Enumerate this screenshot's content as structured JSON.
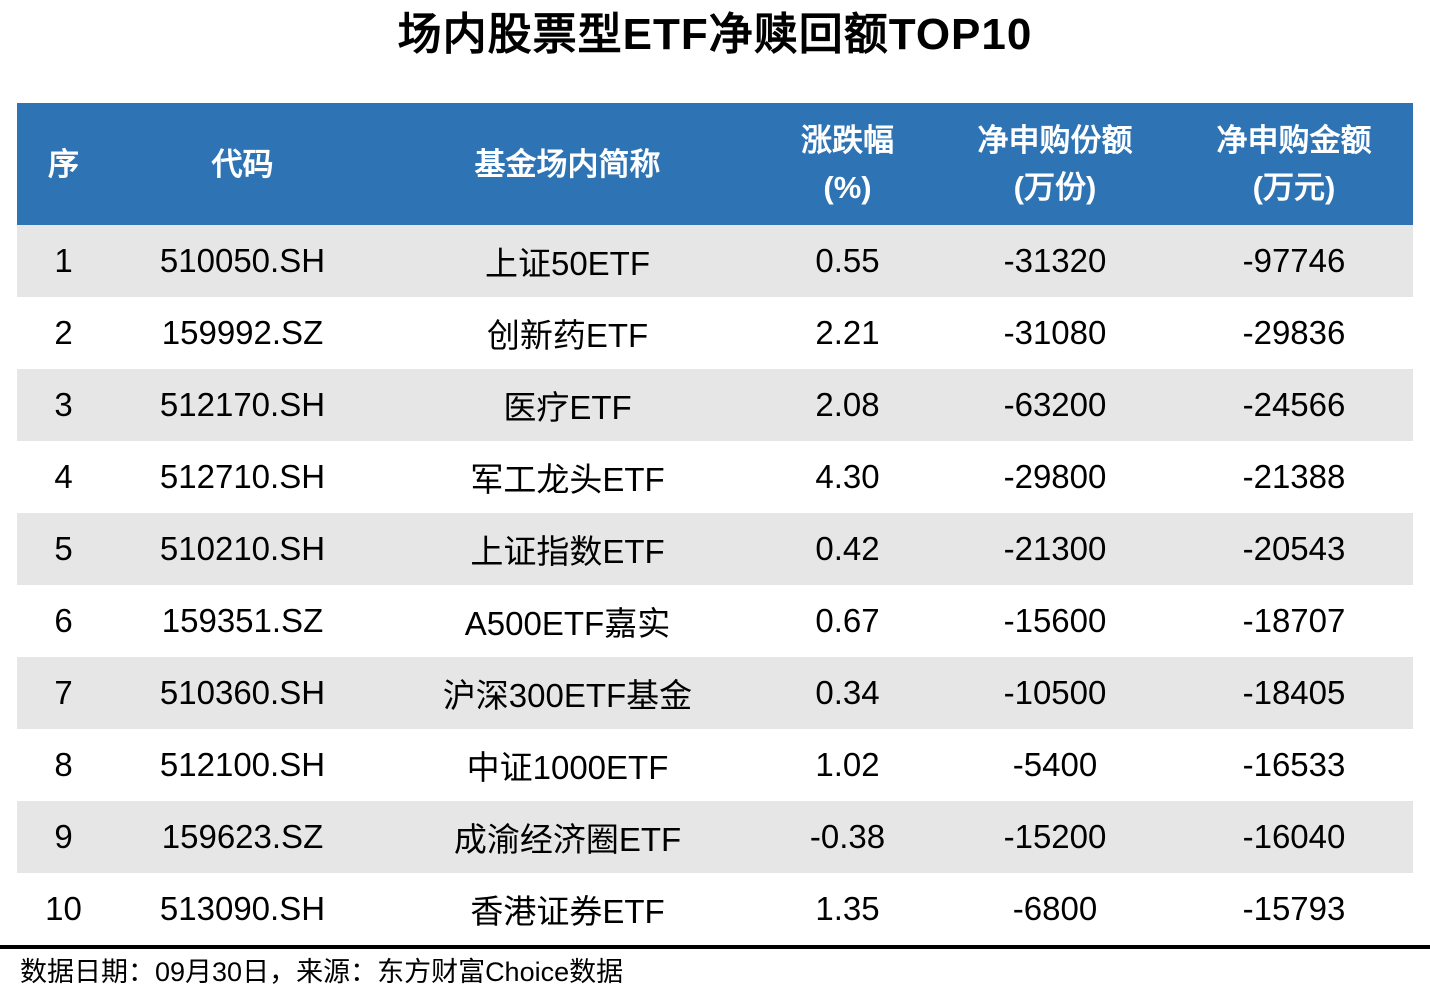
{
  "page": {
    "title": "场内股票型ETF净赎回额TOP10",
    "footer_note": "数据日期：09月30日，来源：东方财富Choice数据"
  },
  "colors": {
    "header_bg": "#2E74B5",
    "header_text": "#FFFFFF",
    "stripe_row_bg": "#E6E6E6",
    "plain_row_bg": "#FFFFFF",
    "body_text": "#000000",
    "divider_rule": "#000000"
  },
  "table": {
    "headers": [
      {
        "line1": "序"
      },
      {
        "line1": "代码"
      },
      {
        "line1": "基金场内简称"
      },
      {
        "line1": "涨跌幅",
        "line2": "(%)"
      },
      {
        "line1": "净申购份额",
        "line2": "(万份)"
      },
      {
        "line1": "净申购金额",
        "line2": "(万元)"
      }
    ],
    "rows": [
      [
        "1",
        "510050.SH",
        "上证50ETF",
        "0.55",
        "-31320",
        "-97746"
      ],
      [
        "2",
        "159992.SZ",
        "创新药ETF",
        "2.21",
        "-31080",
        "-29836"
      ],
      [
        "3",
        "512170.SH",
        "医疗ETF",
        "2.08",
        "-63200",
        "-24566"
      ],
      [
        "4",
        "512710.SH",
        "军工龙头ETF",
        "4.30",
        "-29800",
        "-21388"
      ],
      [
        "5",
        "510210.SH",
        "上证指数ETF",
        "0.42",
        "-21300",
        "-20543"
      ],
      [
        "6",
        "159351.SZ",
        "A500ETF嘉实",
        "0.67",
        "-15600",
        "-18707"
      ],
      [
        "7",
        "510360.SH",
        "沪深300ETF基金",
        "0.34",
        "-10500",
        "-18405"
      ],
      [
        "8",
        "512100.SH",
        "中证1000ETF",
        "1.02",
        "-5400",
        "-16533"
      ],
      [
        "9",
        "159623.SZ",
        "成渝经济圈ETF",
        "-0.38",
        "-15200",
        "-16040"
      ],
      [
        "10",
        "513090.SH",
        "香港证券ETF",
        "1.35",
        "-6800",
        "-15793"
      ]
    ]
  },
  "chart_data": {
    "type": "table",
    "title": "场内股票型ETF净赎回额TOP10",
    "columns": [
      "序",
      "代码",
      "基金场内简称",
      "涨跌幅(%)",
      "净申购份额(万份)",
      "净申购金额(万元)"
    ],
    "rows": [
      [
        1,
        "510050.SH",
        "上证50ETF",
        0.55,
        -31320,
        -97746
      ],
      [
        2,
        "159992.SZ",
        "创新药ETF",
        2.21,
        -31080,
        -29836
      ],
      [
        3,
        "512170.SH",
        "医疗ETF",
        2.08,
        -63200,
        -24566
      ],
      [
        4,
        "512710.SH",
        "军工龙头ETF",
        4.3,
        -29800,
        -21388
      ],
      [
        5,
        "510210.SH",
        "上证指数ETF",
        0.42,
        -21300,
        -20543
      ],
      [
        6,
        "159351.SZ",
        "A500ETF嘉实",
        0.67,
        -15600,
        -18707
      ],
      [
        7,
        "510360.SH",
        "沪深300ETF基金",
        0.34,
        -10500,
        -18405
      ],
      [
        8,
        "512100.SH",
        "中证1000ETF",
        1.02,
        -5400,
        -16533
      ],
      [
        9,
        "159623.SZ",
        "成渝经济圈ETF",
        -0.38,
        -15200,
        -16040
      ],
      [
        10,
        "513090.SH",
        "香港证券ETF",
        1.35,
        -6800,
        -15793
      ]
    ],
    "source_note": "数据日期：09月30日，来源：东方财富Choice数据",
    "layout_hints": {
      "header_style": "white bold text on #2E74B5 blue band, two-line headers for numeric columns",
      "row_striping": "odd data rows shaded #E6E6E6, even rows white",
      "alignment": "all cells center-aligned",
      "divider": "thick black horizontal rule between table and source note"
    }
  }
}
